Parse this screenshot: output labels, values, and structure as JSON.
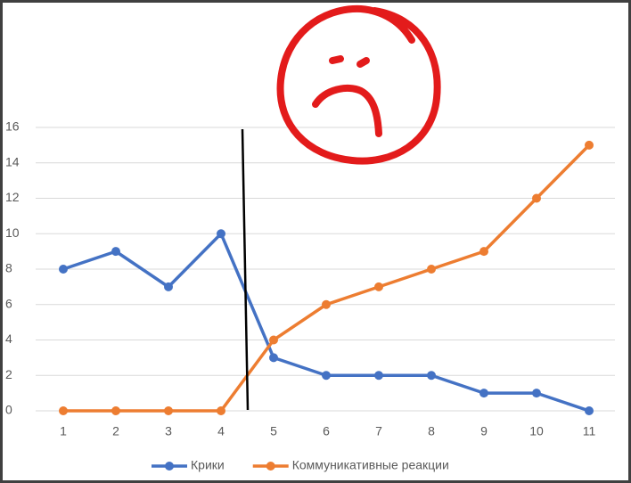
{
  "chart_data": {
    "type": "line",
    "categories": [
      "1",
      "2",
      "3",
      "4",
      "5",
      "6",
      "7",
      "8",
      "9",
      "10",
      "11"
    ],
    "series": [
      {
        "name": "Крики",
        "color": "#4472c4",
        "values": [
          8,
          9,
          7,
          10,
          3,
          2,
          2,
          2,
          1,
          1,
          0
        ]
      },
      {
        "name": "Коммуникативные реакции",
        "color": "#ed7d31",
        "values": [
          0,
          0,
          0,
          0,
          4,
          6,
          7,
          8,
          9,
          12,
          15
        ]
      }
    ],
    "ylim": [
      0,
      16
    ],
    "yticks": [
      0,
      2,
      4,
      6,
      8,
      10,
      12,
      14,
      16
    ],
    "grid": true,
    "legend": "bottom"
  }
}
